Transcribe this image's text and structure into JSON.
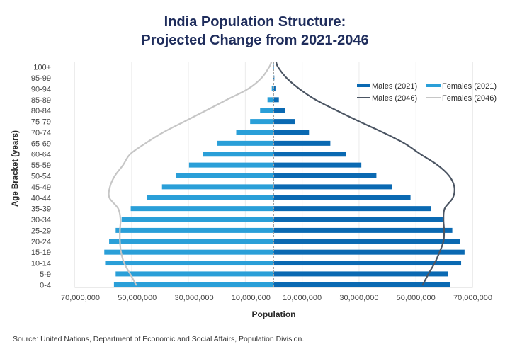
{
  "chart_data": {
    "type": "bar",
    "subtype": "population-pyramid",
    "title": "India Population Structure: Projected Change from 2021-2046",
    "title_lines": [
      "India Population Structure:",
      "Projected Change from 2021-2046"
    ],
    "xlabel": "Population",
    "ylabel": "Age Bracket (years)",
    "categories": [
      "0-4",
      "5-9",
      "10-14",
      "15-19",
      "20-24",
      "25-29",
      "30-34",
      "35-39",
      "40-44",
      "45-49",
      "50-54",
      "55-59",
      "60-64",
      "65-69",
      "70-74",
      "75-79",
      "80-84",
      "85-89",
      "90-94",
      "95-99",
      "100+"
    ],
    "xlim": [
      -70000000,
      70000000
    ],
    "xticks": [
      -70000000,
      -50000000,
      -30000000,
      -10000000,
      10000000,
      30000000,
      50000000,
      70000000
    ],
    "xtick_labels": [
      "70,000,000",
      "50,000,000",
      "30,000,000",
      "10,000,000",
      "10,000,000",
      "30,000,000",
      "50,000,000",
      "70,000,000"
    ],
    "grid": true,
    "legend": "top-right",
    "series": [
      {
        "name": "Males (2021)",
        "type": "bar",
        "side": "right",
        "color": "#0a69b2",
        "values": [
          62000000,
          61400000,
          65900000,
          67100000,
          65500000,
          62800000,
          59400000,
          55300000,
          48100000,
          41700000,
          36100000,
          30800000,
          25400000,
          19900000,
          12400000,
          7400000,
          4100000,
          1800000,
          600000,
          200000,
          30000
        ]
      },
      {
        "name": "Females (2021)",
        "type": "bar",
        "side": "left",
        "color": "#2a9fd8",
        "values": [
          56200000,
          55600000,
          59300000,
          59600000,
          57900000,
          55600000,
          53500000,
          50300000,
          44600000,
          39300000,
          34300000,
          29800000,
          24900000,
          19800000,
          13200000,
          8300000,
          4800000,
          2200000,
          700000,
          300000,
          50000
        ]
      },
      {
        "name": "Males (2046)",
        "type": "line",
        "side": "right",
        "color": "#4b5563",
        "values": [
          52400000,
          54400000,
          56600000,
          58300000,
          59700000,
          59900000,
          59700000,
          60100000,
          63000000,
          63500000,
          61700000,
          57600000,
          51600000,
          45900000,
          38400000,
          30100000,
          22200000,
          14700000,
          9000000,
          4500000,
          1500000
        ]
      },
      {
        "name": "Females (2046)",
        "type": "line",
        "side": "left",
        "color": "#c6c6c6",
        "values": [
          48400000,
          50500000,
          52600000,
          53700000,
          54100000,
          54100000,
          53900000,
          54700000,
          57800000,
          57600000,
          55900000,
          53000000,
          50500000,
          45100000,
          38900000,
          31400000,
          23900000,
          16500000,
          9000000,
          4300000,
          1600000
        ]
      }
    ],
    "source": "Source: United Nations, Department of Economic and Social Affairs, Population Division."
  }
}
